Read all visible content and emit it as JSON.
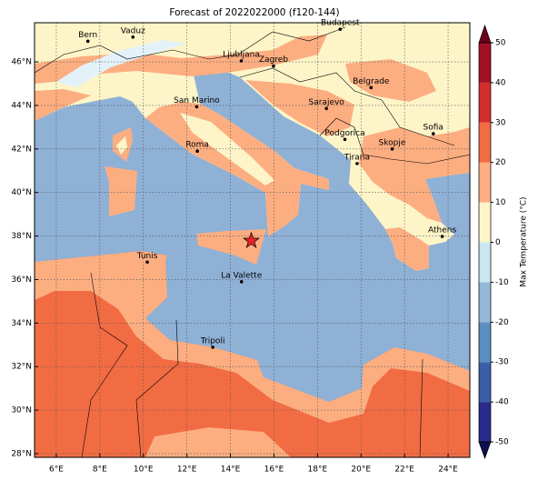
{
  "map": {
    "title": "Forecast of 2022022000 (f120-144)",
    "xlim": [
      5,
      25
    ],
    "ylim": [
      27.83,
      47.8
    ],
    "xticks": [
      {
        "value": 6,
        "label": "6°E"
      },
      {
        "value": 8,
        "label": "8°E"
      },
      {
        "value": 10,
        "label": "10°E"
      },
      {
        "value": 12,
        "label": "12°E"
      },
      {
        "value": 14,
        "label": "14°E"
      },
      {
        "value": 16,
        "label": "16°E"
      },
      {
        "value": 18,
        "label": "18°E"
      },
      {
        "value": 20,
        "label": "20°E"
      },
      {
        "value": 22,
        "label": "22°E"
      },
      {
        "value": 24,
        "label": "24°E"
      }
    ],
    "yticks": [
      {
        "value": 28,
        "label": "28°N"
      },
      {
        "value": 30,
        "label": "30°N"
      },
      {
        "value": 32,
        "label": "32°N"
      },
      {
        "value": 34,
        "label": "34°N"
      },
      {
        "value": 36,
        "label": "36°N"
      },
      {
        "value": 38,
        "label": "38°N"
      },
      {
        "value": 40,
        "label": "40°N"
      },
      {
        "value": 42,
        "label": "42°N"
      },
      {
        "value": 44,
        "label": "44°N"
      },
      {
        "value": 46,
        "label": "46°N"
      }
    ],
    "grid": true,
    "cities": [
      {
        "name": "Bern",
        "lon": 7.45,
        "lat": 46.95
      },
      {
        "name": "Vaduz",
        "lon": 9.52,
        "lat": 47.14
      },
      {
        "name": "Budapest",
        "lon": 19.04,
        "lat": 47.5
      },
      {
        "name": "Ljubljana",
        "lon": 14.5,
        "lat": 46.05
      },
      {
        "name": "Zagreb",
        "lon": 15.98,
        "lat": 45.81
      },
      {
        "name": "Belgrade",
        "lon": 20.46,
        "lat": 44.82
      },
      {
        "name": "Sarajevo",
        "lon": 18.41,
        "lat": 43.86
      },
      {
        "name": "San Marino",
        "lon": 12.45,
        "lat": 43.94
      },
      {
        "name": "Podgorica",
        "lon": 19.26,
        "lat": 42.44
      },
      {
        "name": "Skopje",
        "lon": 21.43,
        "lat": 42.0
      },
      {
        "name": "Sofia",
        "lon": 23.32,
        "lat": 42.7
      },
      {
        "name": "Roma",
        "lon": 12.48,
        "lat": 41.9
      },
      {
        "name": "Tirana",
        "lon": 19.82,
        "lat": 41.33
      },
      {
        "name": "Athens",
        "lon": 23.73,
        "lat": 37.98
      },
      {
        "name": "Tunis",
        "lon": 10.18,
        "lat": 36.8
      },
      {
        "name": "La Valette",
        "lon": 14.51,
        "lat": 35.9
      },
      {
        "name": "Tripoli",
        "lon": 13.19,
        "lat": 32.89
      }
    ],
    "marker": {
      "lon": 14.96,
      "lat": 37.78,
      "color": "#e8202a"
    },
    "colorbar": {
      "label": "Max Temperature (°C)",
      "ticks": [
        -50,
        -40,
        -30,
        -20,
        -10,
        0,
        10,
        20,
        30,
        40,
        50
      ],
      "colors": [
        "#2a2a8c",
        "#3b5fa6",
        "#5b8fc1",
        "#94b8d8",
        "#cbe6f1",
        "#fdf5c8",
        "#fcae81",
        "#f26c43",
        "#d42e2a",
        "#a30f27"
      ],
      "under": "#10104f",
      "over": "#6e001c"
    }
  }
}
